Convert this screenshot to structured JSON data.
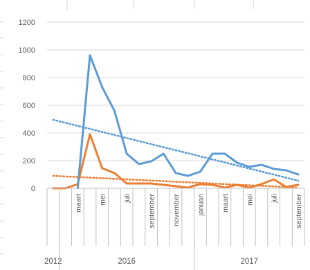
{
  "chart_data": {
    "type": "line",
    "title": "",
    "xlabel": "",
    "ylabel": "",
    "ylim": [
      0,
      1200
    ],
    "yticks": [
      0,
      200,
      400,
      600,
      800,
      1000,
      1200
    ],
    "grid": true,
    "legend": "none",
    "categories": [
      "2012",
      "",
      "maart",
      "",
      "mei",
      "",
      "juli",
      "",
      "september",
      "",
      "november",
      "",
      "januari",
      "",
      "maart",
      "",
      "mei",
      "",
      "juli",
      "",
      "september"
    ],
    "year_groups": [
      {
        "label": "2012",
        "count": 1
      },
      {
        "label": "2016",
        "count": 11
      },
      {
        "label": "2017",
        "count": 9
      }
    ],
    "series": [
      {
        "color": "#5B9BD5",
        "values": [
          null,
          null,
          0,
          960,
          730,
          560,
          250,
          175,
          195,
          250,
          110,
          90,
          120,
          250,
          250,
          185,
          155,
          170,
          140,
          130,
          100
        ],
        "trendline": {
          "color": "#5B9BD5",
          "style": "dotted",
          "start": 495,
          "end": 55
        }
      },
      {
        "color": "#ED7D31",
        "values": [
          0,
          0,
          30,
          390,
          145,
          110,
          35,
          35,
          35,
          25,
          15,
          5,
          30,
          25,
          5,
          25,
          5,
          30,
          65,
          10,
          25
        ],
        "trendline": {
          "color": "#ED7D31",
          "style": "dotted",
          "start": 90,
          "end": 5
        }
      }
    ]
  },
  "colors": {
    "grid": "#D9D9D9",
    "axis": "#BFBFBF",
    "text": "#595959",
    "sheet_lines": "#D4D4D4"
  }
}
